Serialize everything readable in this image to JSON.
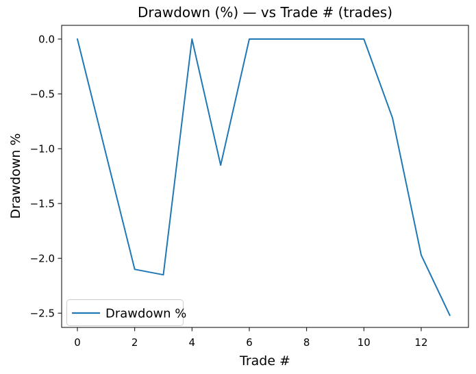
{
  "figure": {
    "background": "#ffffff",
    "spine_color": "#000000"
  },
  "chart_data": {
    "type": "line",
    "title": "Drawdown (%) — vs Trade # (trades)",
    "xlabel": "Trade #",
    "ylabel": "Drawdown %",
    "series": [
      {
        "name": "Drawdown %",
        "color": "#1f77b4",
        "x": [
          0,
          1,
          2,
          3,
          4,
          5,
          6,
          7,
          8,
          9,
          10,
          11,
          12,
          13
        ],
        "y": [
          0.0,
          -1.05,
          -2.1,
          -2.15,
          0.0,
          -1.15,
          0.0,
          0.0,
          0.0,
          0.0,
          0.0,
          -0.72,
          -1.97,
          -2.52
        ]
      }
    ],
    "x_ticks": [
      "0",
      "2",
      "4",
      "6",
      "8",
      "10",
      "12"
    ],
    "x_tick_values": [
      0,
      2,
      4,
      6,
      8,
      10,
      12
    ],
    "y_ticks": [
      "0.0",
      "−0.5",
      "−1.0",
      "−1.5",
      "−2.0",
      "−2.5"
    ],
    "y_tick_values": [
      0,
      -0.5,
      -1.0,
      -1.5,
      -2.0,
      -2.5
    ],
    "xlim": [
      -0.55,
      13.65
    ],
    "ylim": [
      -2.63,
      0.125
    ],
    "grid": false,
    "legend": {
      "position": "lower left",
      "entries": [
        {
          "label": "Drawdown %",
          "color": "#1f77b4"
        }
      ]
    }
  }
}
